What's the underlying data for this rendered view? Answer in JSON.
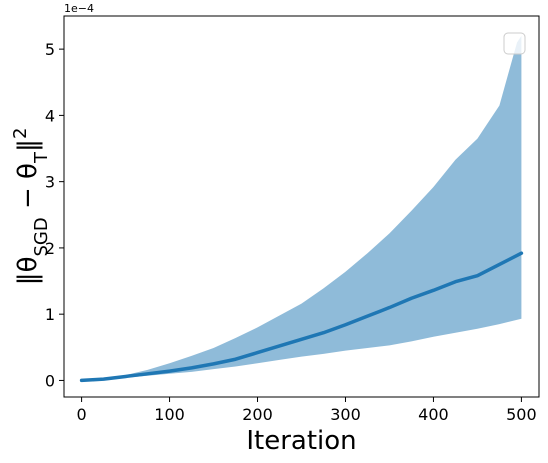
{
  "chart_data": {
    "type": "line",
    "xlabel": "Iteration",
    "ylabel": "‖θSGD − θT‖²",
    "ylabel_parts": {
      "norm_open": "‖θ",
      "sub1": "SGD",
      "minus": " − θ",
      "sub2": "T",
      "norm_close": "‖",
      "sup": "2"
    },
    "y_offset_label": "1e−4",
    "xlim": [
      -20,
      520
    ],
    "ylim": [
      -0.25,
      5.5
    ],
    "y_scale_note": "values in units of 1e-4",
    "xticks": [
      0,
      100,
      200,
      300,
      400,
      500
    ],
    "xtick_labels": [
      "0",
      "100",
      "200",
      "300",
      "400",
      "500"
    ],
    "yticks": [
      0,
      1,
      2,
      3,
      4,
      5
    ],
    "ytick_labels": [
      "0",
      "1",
      "2",
      "3",
      "4",
      "5"
    ],
    "grid": false,
    "legend": "top-right (empty)",
    "colors": {
      "mean_line": "#1f77b4",
      "band_fill": "#1f77b4",
      "band_opacity": 0.5
    },
    "series": [
      {
        "role": "mean",
        "x": [
          0,
          25,
          50,
          75,
          100,
          125,
          150,
          175,
          200,
          225,
          250,
          275,
          300,
          325,
          350,
          375,
          400,
          425,
          450,
          475,
          500
        ],
        "y": [
          0.0,
          0.02,
          0.06,
          0.1,
          0.14,
          0.19,
          0.25,
          0.32,
          0.42,
          0.52,
          0.62,
          0.72,
          0.84,
          0.97,
          1.1,
          1.24,
          1.36,
          1.49,
          1.58,
          1.75,
          1.92
        ]
      },
      {
        "role": "band_upper",
        "x": [
          0,
          25,
          50,
          75,
          100,
          125,
          150,
          175,
          200,
          225,
          250,
          275,
          300,
          325,
          350,
          375,
          400,
          425,
          450,
          475,
          495,
          500
        ],
        "y": [
          0.0,
          0.02,
          0.08,
          0.16,
          0.26,
          0.37,
          0.49,
          0.64,
          0.8,
          0.98,
          1.16,
          1.39,
          1.64,
          1.92,
          2.22,
          2.56,
          2.92,
          3.33,
          3.65,
          4.15,
          5.1,
          5.2
        ]
      },
      {
        "role": "band_lower",
        "x": [
          0,
          25,
          50,
          75,
          100,
          125,
          150,
          175,
          200,
          225,
          250,
          275,
          300,
          325,
          350,
          375,
          400,
          425,
          450,
          475,
          500
        ],
        "y": [
          0.0,
          0.01,
          0.04,
          0.07,
          0.1,
          0.13,
          0.17,
          0.21,
          0.26,
          0.31,
          0.36,
          0.4,
          0.45,
          0.49,
          0.53,
          0.59,
          0.66,
          0.72,
          0.78,
          0.85,
          0.93
        ]
      }
    ]
  }
}
